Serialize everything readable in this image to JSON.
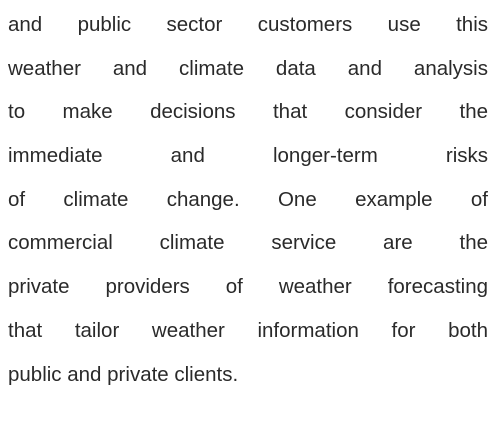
{
  "paragraph": {
    "lines": [
      "and public sector customers use this",
      "weather and climate data and analysis",
      "to make decisions that consider the",
      "immediate and longer-term risks",
      "of climate change. One example of",
      "commercial climate service are the",
      "private providers of weather forecasting",
      "that tailor weather information for both",
      "public and private clients."
    ]
  }
}
